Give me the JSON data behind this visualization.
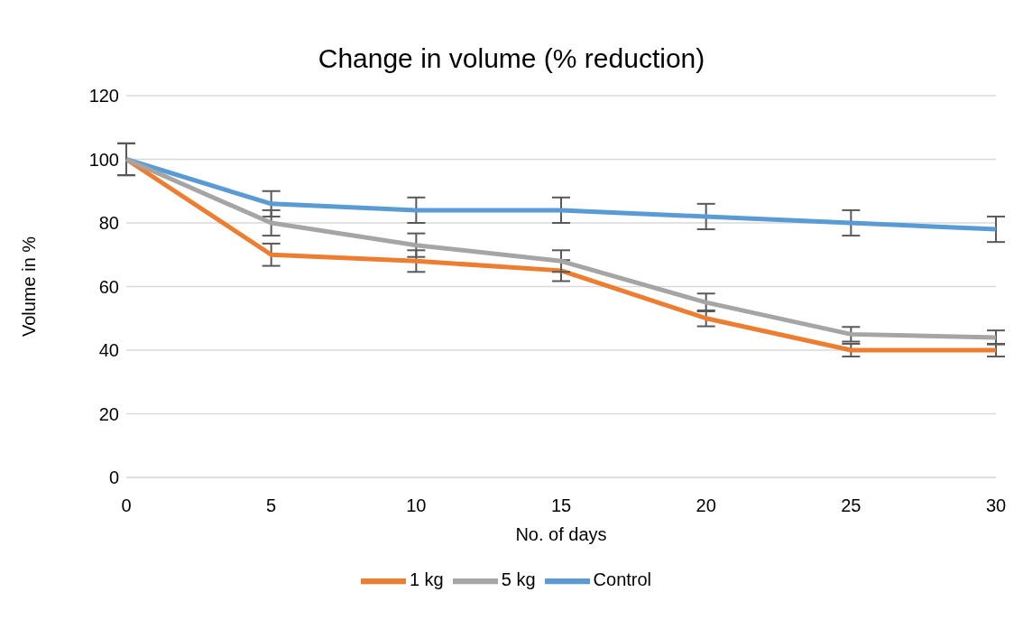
{
  "chart_data": {
    "type": "line",
    "title": "Change in volume (% reduction)",
    "xlabel": "No. of days",
    "ylabel": "Volume in %",
    "categories": [
      "0",
      "5",
      "10",
      "15",
      "20",
      "25",
      "30"
    ],
    "series": [
      {
        "name": "Control",
        "color": "#5b9bd5",
        "values": [
          100,
          86,
          84,
          84,
          82,
          80,
          78
        ],
        "errors": [
          5,
          4,
          4,
          4,
          4,
          4,
          4
        ]
      },
      {
        "name": "1 kg",
        "color": "#ed7d31",
        "values": [
          100,
          70,
          68,
          65,
          50,
          40,
          40
        ],
        "errors": [
          5,
          3.5,
          3.4,
          3.3,
          2.5,
          2,
          2
        ]
      },
      {
        "name": "5 kg",
        "color": "#a5a5a5",
        "values": [
          100,
          80,
          73,
          68,
          55,
          45,
          44
        ],
        "errors": [
          5,
          4,
          3.7,
          3.4,
          2.8,
          2.3,
          2.2
        ]
      }
    ],
    "ylim": [
      0,
      120
    ],
    "yticks": [
      0,
      20,
      40,
      60,
      80,
      100,
      120
    ],
    "grid": "y",
    "legend": "bottom",
    "marker": "none",
    "line_style": "solid"
  }
}
